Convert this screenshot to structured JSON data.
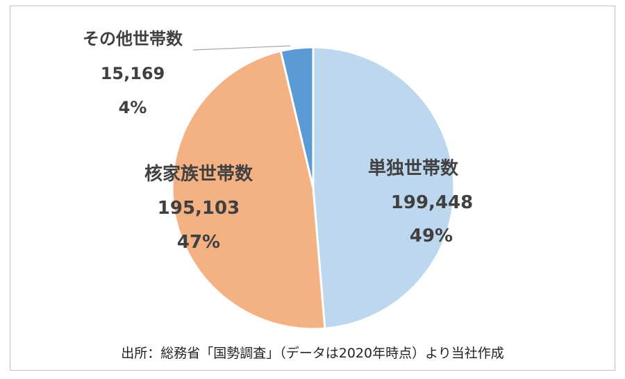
{
  "chart_data": {
    "type": "pie",
    "title": "",
    "categories": [
      "単独世帯数",
      "核家族世帯数",
      "その他世帯数"
    ],
    "values": [
      199448,
      195103,
      15169
    ],
    "percent_labels": [
      "49%",
      "47%",
      "4%"
    ],
    "value_labels": [
      "199,448",
      "195,103",
      "15,169"
    ],
    "colors": [
      "#bdd7ee",
      "#f4b183",
      "#5b9bd5"
    ],
    "start_angle_deg": 0,
    "direction": "clockwise"
  },
  "source_note": "出所：総務省「国勢調査」（データは2020年時点）より当社作成"
}
